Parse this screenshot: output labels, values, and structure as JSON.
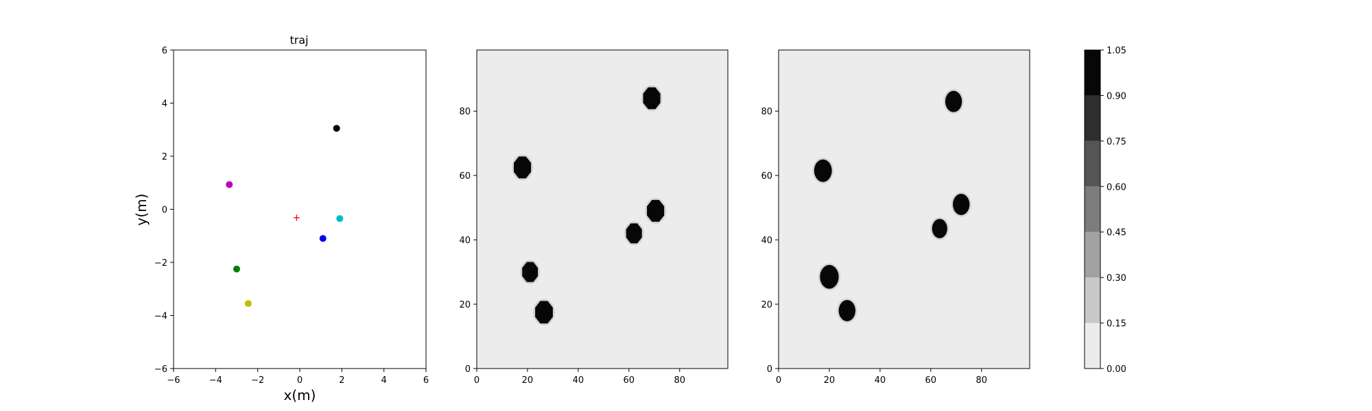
{
  "chart_data": [
    {
      "type": "scatter",
      "title": "traj",
      "xlabel": "x(m)",
      "ylabel": "y(m)",
      "xlim": [
        -6,
        6
      ],
      "ylim": [
        -6,
        6
      ],
      "xticks": [
        -6,
        -4,
        -2,
        0,
        2,
        4,
        6
      ],
      "yticks": [
        -6,
        -4,
        -2,
        0,
        2,
        4,
        6
      ],
      "grid": false,
      "series": [
        {
          "color": "#000000",
          "marker": "circle",
          "points": [
            [
              1.75,
              3.05
            ]
          ]
        },
        {
          "color": "#bf00bf",
          "marker": "circle",
          "points": [
            [
              -3.35,
              0.93
            ]
          ]
        },
        {
          "color": "#00bfbf",
          "marker": "circle",
          "points": [
            [
              1.9,
              -0.35
            ]
          ]
        },
        {
          "color": "#0000ff",
          "marker": "circle",
          "points": [
            [
              1.1,
              -1.1
            ]
          ]
        },
        {
          "color": "#008000",
          "marker": "circle",
          "points": [
            [
              -3.0,
              -2.25
            ]
          ]
        },
        {
          "color": "#bfbf00",
          "marker": "circle",
          "points": [
            [
              -2.45,
              -3.55
            ]
          ]
        },
        {
          "color": "#ff0000",
          "marker": "plus",
          "points": [
            [
              -0.15,
              -0.32
            ]
          ]
        }
      ]
    },
    {
      "type": "heatmap",
      "title": "",
      "xlim": [
        0,
        99
      ],
      "ylim": [
        0,
        99
      ],
      "xticks": [
        0,
        20,
        40,
        60,
        80
      ],
      "yticks": [
        0,
        20,
        40,
        60,
        80
      ],
      "background_value": 0.0,
      "blob_shape": "octagon",
      "blobs": [
        {
          "x": 69,
          "y": 84,
          "r": 3.5,
          "value": 1.0
        },
        {
          "x": 18,
          "y": 62.5,
          "r": 3.5,
          "value": 1.0
        },
        {
          "x": 70.5,
          "y": 49,
          "r": 3.5,
          "value": 1.0
        },
        {
          "x": 62,
          "y": 42,
          "r": 3.2,
          "value": 1.0
        },
        {
          "x": 21,
          "y": 30,
          "r": 3.2,
          "value": 1.0
        },
        {
          "x": 26.5,
          "y": 17.5,
          "r": 3.6,
          "value": 1.0
        }
      ]
    },
    {
      "type": "heatmap",
      "title": "",
      "xlim": [
        0,
        99
      ],
      "ylim": [
        0,
        99
      ],
      "xticks": [
        0,
        20,
        40,
        60,
        80
      ],
      "yticks": [
        0,
        20,
        40,
        60,
        80
      ],
      "background_value": 0.0,
      "blob_shape": "ellipse",
      "blobs": [
        {
          "x": 69,
          "y": 83,
          "r": 3.3,
          "value": 1.0
        },
        {
          "x": 17.5,
          "y": 61.5,
          "r": 3.5,
          "value": 1.0
        },
        {
          "x": 72,
          "y": 51,
          "r": 3.3,
          "value": 1.0
        },
        {
          "x": 63.5,
          "y": 43.5,
          "r": 3.0,
          "value": 1.0
        },
        {
          "x": 20,
          "y": 28.5,
          "r": 3.7,
          "value": 1.0
        },
        {
          "x": 27,
          "y": 18,
          "r": 3.3,
          "value": 1.0
        }
      ]
    }
  ],
  "colorbar": {
    "ticks": [
      "0.00",
      "0.15",
      "0.30",
      "0.45",
      "0.60",
      "0.75",
      "0.90",
      "1.05"
    ],
    "levels": [
      0.0,
      0.15,
      0.3,
      0.45,
      0.6,
      0.75,
      0.9,
      1.05
    ],
    "colors": [
      "#ececec",
      "#c8c8c8",
      "#a2a2a2",
      "#7c7c7c",
      "#555555",
      "#2e2e2e",
      "#070707"
    ]
  }
}
